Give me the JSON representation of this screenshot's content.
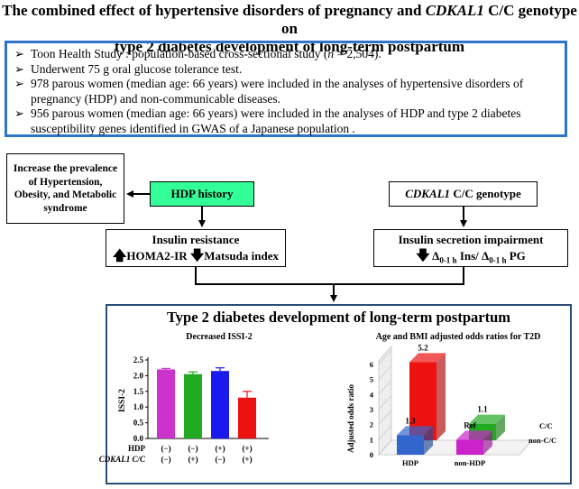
{
  "title": {
    "line1": "The combined effect of hypertensive disorders of pregnancy and ",
    "gene": "CDKAL1",
    "line1_end": " C/C genotype on",
    "line2": "type 2 diabetes development of long-term postpartum"
  },
  "study": {
    "bullets": [
      {
        "pre": "Toon Health Study : population-based cross-sectional study (",
        "ital": "n",
        "post": " = 2,504)."
      },
      {
        "pre": "Underwent 75 g oral glucose tolerance test.",
        "ital": "",
        "post": ""
      },
      {
        "pre": "978 parous women (median age: 66 years) were included in the analyses of hypertensive disorders of pregnancy (HDP) and non-communicable diseases.",
        "ital": "",
        "post": ""
      },
      {
        "pre": "956 parous women (median age: 66 years) were included in the analyses of HDP and type 2 diabetes susceptibility genes identified in GWAS of a Japanese population .",
        "ital": "",
        "post": ""
      }
    ]
  },
  "flow": {
    "increase_box": "Increase the prevalence of Hypertension, Obesity, and Metabolic syndrome",
    "hdp_box": "HDP history",
    "genotype_gene": "CDKAL1",
    "genotype_rest": " C/C genotype",
    "insulin_res_title": "Insulin resistance",
    "homa": "HOMA2-IR",
    "matsuda": "Matsuda index",
    "secretion_title": "Insulin secretion impairment",
    "delta_sub": "0-1 h",
    "ins": " Ins/ ",
    "pg": " PG"
  },
  "t2d_title": "Type 2 diabetes development of long-term postpartum",
  "chart_data": [
    {
      "type": "bar",
      "title": "Decreased ISSI-2",
      "ylabel": "ISSI-2",
      "ylim": [
        0,
        2.5
      ],
      "yticks": [
        "0.0",
        "0.5",
        "1.0",
        "1.5",
        "2.0",
        "2.5"
      ],
      "values": [
        2.2,
        2.05,
        2.15,
        1.3
      ],
      "errors": [
        0.03,
        0.07,
        0.1,
        0.2
      ],
      "colors": [
        "#cc33cc",
        "#22aa22",
        "#1a1aee",
        "#ee1111"
      ],
      "row_labels": [
        "HDP",
        "CDKAL1 C/C"
      ],
      "hdp_row": [
        "(−)",
        "(−)",
        "(+)",
        "(+)"
      ],
      "cdkal1_row": [
        "(−)",
        "(+)",
        "(−)",
        "(+)"
      ]
    },
    {
      "type": "bar",
      "title": "Age and BMI adjusted odds ratios for T2D",
      "ylabel": "Adjusted odds ratio",
      "ylim": [
        0,
        6
      ],
      "yticks": [
        "0",
        "1",
        "2",
        "3",
        "4",
        "5",
        "6"
      ],
      "x_categories": [
        "HDP",
        "non-HDP"
      ],
      "depth_categories": [
        "C/C",
        "non-C/C"
      ],
      "bars": [
        {
          "x": "HDP",
          "depth": "C/C",
          "value": 5.2,
          "label": "5.2",
          "color": "#ee1111"
        },
        {
          "x": "non-HDP",
          "depth": "C/C",
          "value": 1.1,
          "label": "1.1",
          "color": "#22aa22"
        },
        {
          "x": "HDP",
          "depth": "non-C/C",
          "value": 1.3,
          "label": "1.3",
          "color": "#3366cc"
        },
        {
          "x": "non-HDP",
          "depth": "non-C/C",
          "value": 1.0,
          "label": "Ref",
          "color": "#cc22cc"
        }
      ]
    }
  ]
}
